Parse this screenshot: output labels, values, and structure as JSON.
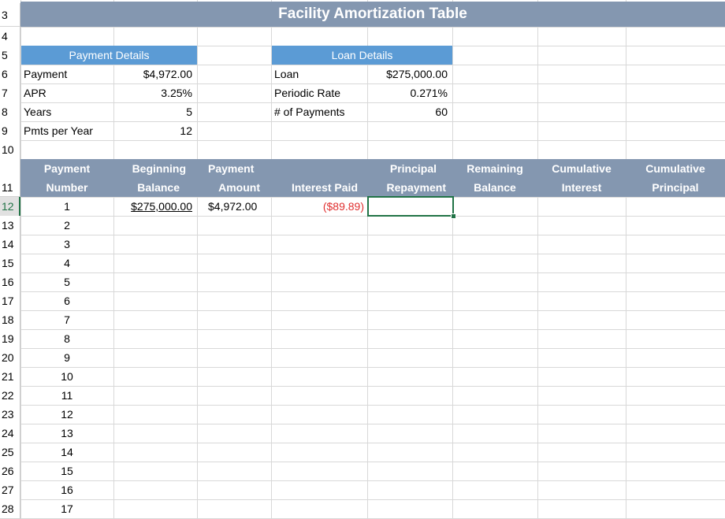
{
  "title": "Facility Amortization Table",
  "row_headers": [
    "3",
    "4",
    "5",
    "6",
    "7",
    "8",
    "9",
    "10",
    "11",
    "12",
    "13",
    "14",
    "15",
    "16",
    "17",
    "18",
    "19",
    "20",
    "21",
    "22",
    "23",
    "24",
    "25",
    "26",
    "27",
    "28"
  ],
  "payment_details": {
    "header": "Payment Details",
    "rows": [
      {
        "label": "Payment",
        "value": "$4,972.00"
      },
      {
        "label": "APR",
        "value": "3.25%"
      },
      {
        "label": "Years",
        "value": "5"
      },
      {
        "label": "Pmts per Year",
        "value": "12"
      }
    ]
  },
  "loan_details": {
    "header": "Loan Details",
    "rows": [
      {
        "label": "Loan",
        "value": "$275,000.00"
      },
      {
        "label": "Periodic Rate",
        "value": "0.271%"
      },
      {
        "label": "# of Payments",
        "value": "60"
      }
    ]
  },
  "table_headers": [
    {
      "line1": "Payment",
      "line2": "Number"
    },
    {
      "line1": "Beginning",
      "line2": "Balance"
    },
    {
      "line1": "Payment",
      "line2": "Amount"
    },
    {
      "line1": "",
      "line2": "Interest Paid"
    },
    {
      "line1": "Principal",
      "line2": "Repayment"
    },
    {
      "line1": "Remaining",
      "line2": "Balance"
    },
    {
      "line1": "Cumulative",
      "line2": "Interest"
    },
    {
      "line1": "Cumulative",
      "line2": "Principal"
    }
  ],
  "first_row": {
    "number": "1",
    "beginning_balance": "$275,000.00",
    "payment_amount": "$4,972.00",
    "interest_paid": "($89.89)"
  },
  "payment_numbers": [
    "2",
    "3",
    "4",
    "5",
    "6",
    "7",
    "8",
    "9",
    "10",
    "11",
    "12",
    "13",
    "14",
    "15",
    "16",
    "17"
  ],
  "colors": {
    "title_bg": "#8497b0",
    "section_header_bg": "#5b9bd5",
    "selection": "#217346",
    "negative": "#e03030"
  }
}
